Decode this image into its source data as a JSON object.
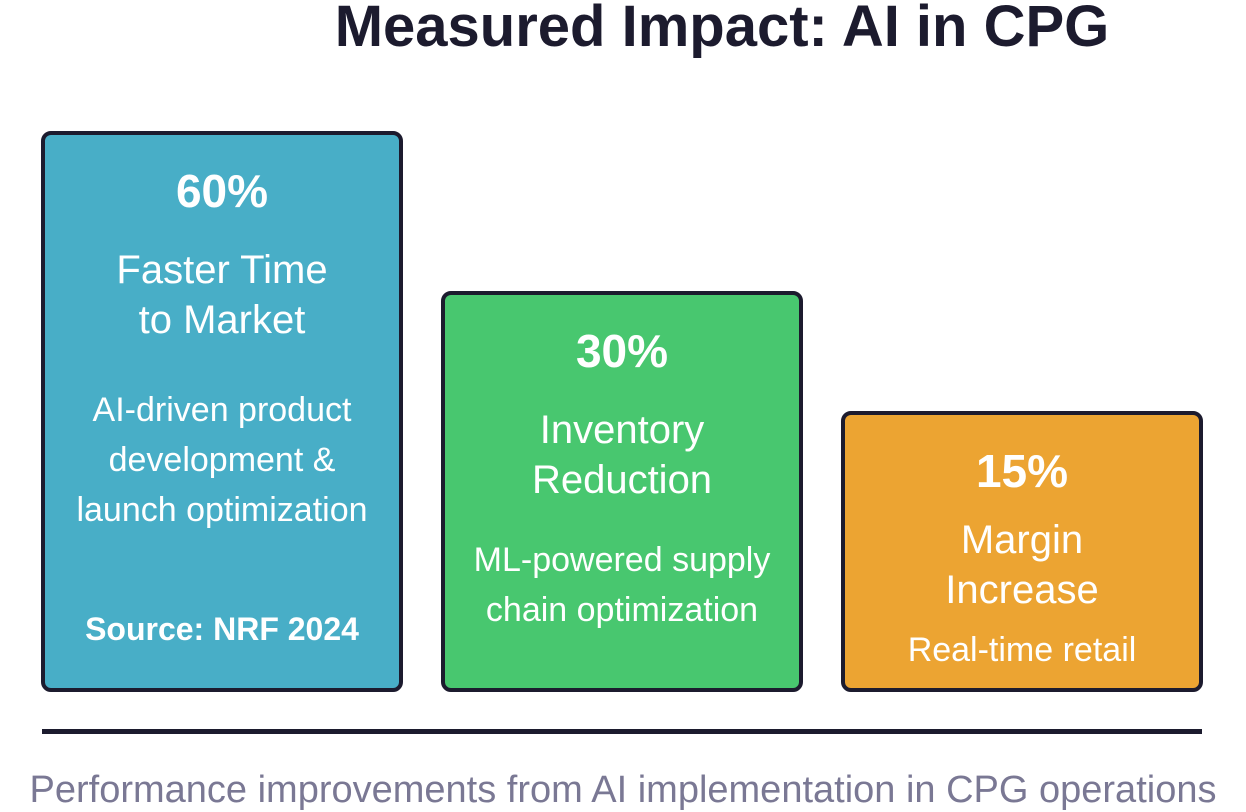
{
  "title": "Measured Impact: AI in CPG",
  "cards": [
    {
      "value": "60%",
      "label_lines": [
        "Faster Time",
        "to Market"
      ],
      "desc_lines": [
        "AI-driven product",
        "development &",
        "launch optimization"
      ],
      "source": "Source: NRF 2024",
      "color": "#48aec7"
    },
    {
      "value": "30%",
      "label_lines": [
        "Inventory",
        "Reduction"
      ],
      "desc_lines": [
        "ML-powered supply",
        "chain optimization"
      ],
      "color": "#48c76f"
    },
    {
      "value": "15%",
      "label_lines": [
        "Margin",
        "Increase"
      ],
      "desc_lines": [
        "Real-time retail"
      ],
      "color": "#eca432"
    }
  ],
  "footer": "Performance improvements from AI implementation in CPG operations",
  "colors": {
    "text_dark": "#1c1b2e",
    "footer_text": "#7a7894",
    "card_border": "#1c1b2e"
  }
}
